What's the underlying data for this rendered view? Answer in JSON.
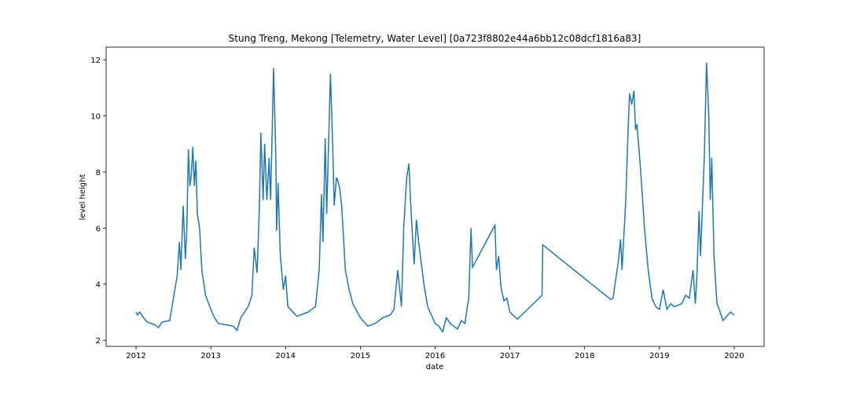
{
  "chart_data": {
    "type": "line",
    "title": "Stung Treng, Mekong [Telemetry, Water Level] [0a723f8802e44a6bb12c08dcf1816a83]",
    "x_label": "date",
    "y_label": "level height",
    "x": [
      2012.0,
      2012.02,
      2012.05,
      2012.1,
      2012.15,
      2012.25,
      2012.3,
      2012.35,
      2012.45,
      2012.5,
      2012.55,
      2012.58,
      2012.6,
      2012.63,
      2012.66,
      2012.68,
      2012.7,
      2012.72,
      2012.74,
      2012.76,
      2012.78,
      2012.8,
      2012.82,
      2012.85,
      2012.88,
      2012.93,
      2013.0,
      2013.05,
      2013.1,
      2013.2,
      2013.3,
      2013.35,
      2013.4,
      2013.5,
      2013.55,
      2013.58,
      2013.62,
      2013.65,
      2013.67,
      2013.7,
      2013.72,
      2013.75,
      2013.78,
      2013.8,
      2013.84,
      2013.87,
      2013.88,
      2013.9,
      2013.93,
      2013.97,
      2014.0,
      2014.03,
      2014.1,
      2014.15,
      2014.2,
      2014.3,
      2014.4,
      2014.45,
      2014.48,
      2014.5,
      2014.53,
      2014.55,
      2014.6,
      2014.63,
      2014.65,
      2014.68,
      2014.72,
      2014.75,
      2014.8,
      2014.85,
      2014.9,
      2015.0,
      2015.1,
      2015.2,
      2015.3,
      2015.4,
      2015.45,
      2015.5,
      2015.55,
      2015.58,
      2015.62,
      2015.65,
      2015.68,
      2015.72,
      2015.75,
      2015.78,
      2015.85,
      2015.9,
      2015.95,
      2016.0,
      2016.05,
      2016.1,
      2016.15,
      2016.2,
      2016.3,
      2016.35,
      2016.4,
      2016.42,
      2016.45,
      2016.48,
      2016.5,
      2016.8,
      2016.82,
      2016.85,
      2016.88,
      2016.92,
      2016.96,
      2017.0,
      2017.1,
      2017.43,
      2017.44,
      2018.35,
      2018.38,
      2018.45,
      2018.48,
      2018.5,
      2018.55,
      2018.58,
      2018.6,
      2018.63,
      2018.66,
      2018.68,
      2018.7,
      2018.75,
      2018.8,
      2018.85,
      2018.9,
      2018.95,
      2019.0,
      2019.05,
      2019.1,
      2019.15,
      2019.2,
      2019.3,
      2019.35,
      2019.4,
      2019.45,
      2019.48,
      2019.5,
      2019.53,
      2019.55,
      2019.6,
      2019.63,
      2019.66,
      2019.68,
      2019.7,
      2019.73,
      2019.77,
      2019.8,
      2019.85,
      2019.9,
      2019.95,
      2020.0
    ],
    "series": [
      {
        "name": "level",
        "color": "#1f77b4",
        "values": [
          3.0,
          2.9,
          3.0,
          2.8,
          2.65,
          2.55,
          2.45,
          2.65,
          2.7,
          3.5,
          4.3,
          5.5,
          4.5,
          6.8,
          4.9,
          6.0,
          8.8,
          7.5,
          7.9,
          8.9,
          7.5,
          8.4,
          6.5,
          6.0,
          4.5,
          3.6,
          3.1,
          2.8,
          2.6,
          2.55,
          2.5,
          2.35,
          2.8,
          3.2,
          3.6,
          5.3,
          4.4,
          6.8,
          9.4,
          7.0,
          9.0,
          7.0,
          8.5,
          7.0,
          11.7,
          8.5,
          5.9,
          7.6,
          5.0,
          3.8,
          4.3,
          3.2,
          3.0,
          2.85,
          2.9,
          3.0,
          3.2,
          4.5,
          7.2,
          5.5,
          9.2,
          6.5,
          11.5,
          9.0,
          6.8,
          7.8,
          7.5,
          6.8,
          4.5,
          3.8,
          3.3,
          2.8,
          2.5,
          2.6,
          2.8,
          2.9,
          3.1,
          4.5,
          3.2,
          6.0,
          7.8,
          8.3,
          6.5,
          4.7,
          6.3,
          5.5,
          4.0,
          3.2,
          2.9,
          2.6,
          2.5,
          2.3,
          2.8,
          2.6,
          2.4,
          2.7,
          2.6,
          3.0,
          3.5,
          6.0,
          4.6,
          6.1,
          4.5,
          5.0,
          3.9,
          3.4,
          3.5,
          3.0,
          2.75,
          3.6,
          5.4,
          3.45,
          3.5,
          4.8,
          5.6,
          4.5,
          7.0,
          9.4,
          10.8,
          10.4,
          10.9,
          9.5,
          9.7,
          8.0,
          6.0,
          4.5,
          3.5,
          3.2,
          3.1,
          3.8,
          3.1,
          3.3,
          3.2,
          3.3,
          3.6,
          3.5,
          4.5,
          3.3,
          4.2,
          6.6,
          5.0,
          8.5,
          11.9,
          10.0,
          7.0,
          8.5,
          5.0,
          3.3,
          3.1,
          2.7,
          2.85,
          3.0,
          2.9
        ]
      }
    ],
    "xlim": [
      2011.6,
      2020.4
    ],
    "xticks": [
      2012,
      2013,
      2014,
      2015,
      2016,
      2017,
      2018,
      2019,
      2020
    ],
    "ylim": [
      1.78,
      12.45
    ],
    "yticks": [
      2,
      4,
      6,
      8,
      10,
      12
    ],
    "grid": false
  }
}
